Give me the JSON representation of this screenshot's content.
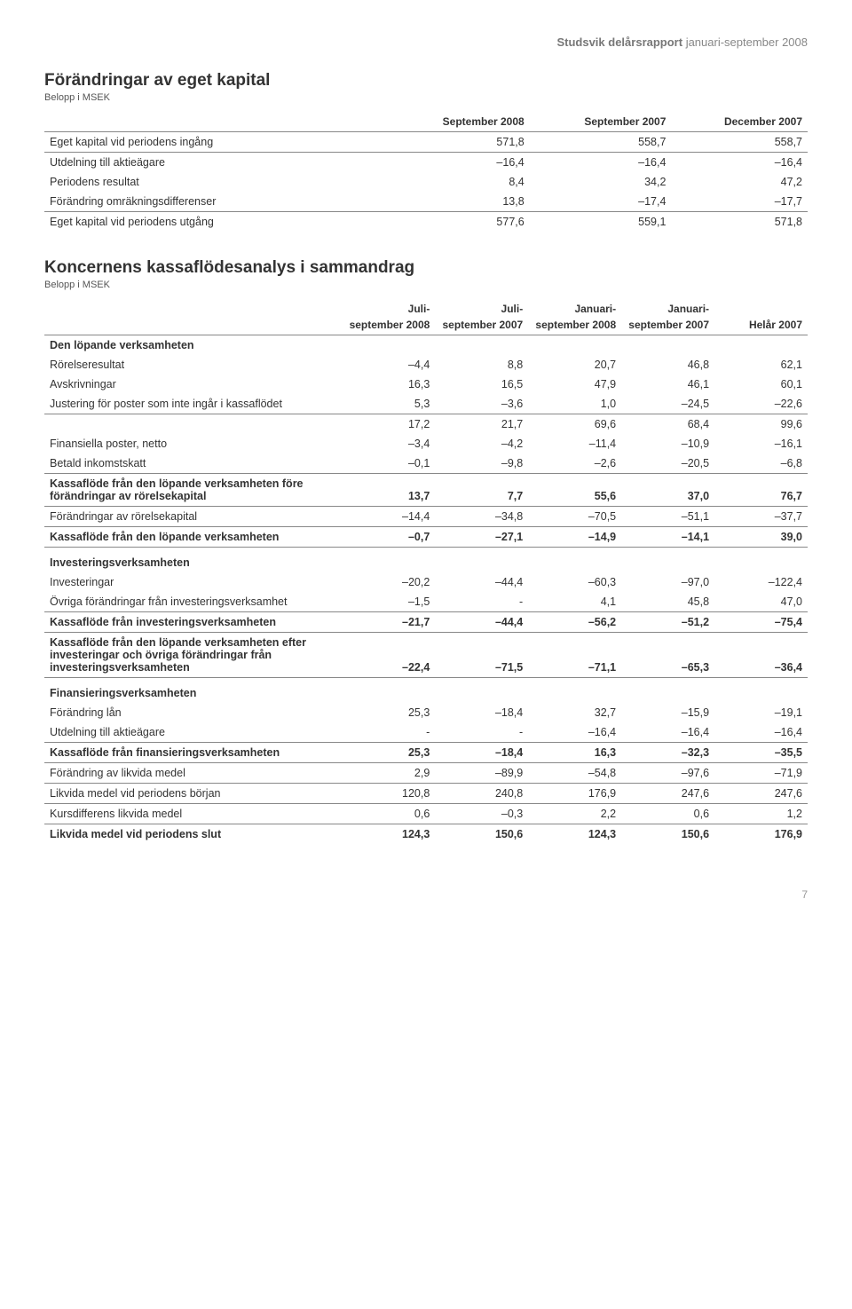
{
  "header": {
    "bold": "Studsvik delårsrapport",
    "light": " januari-september 2008"
  },
  "table1": {
    "title": "Förändringar av eget kapital",
    "sub": "Belopp i MSEK",
    "columns": [
      "",
      "September 2008",
      "September 2007",
      "December 2007"
    ],
    "rows": [
      {
        "label": "Eget kapital vid periodens ingång",
        "v": [
          "571,8",
          "558,7",
          "558,7"
        ],
        "border": true
      },
      {
        "label": "Utdelning till aktieägare",
        "v": [
          "–16,4",
          "–16,4",
          "–16,4"
        ]
      },
      {
        "label": "Periodens resultat",
        "v": [
          "8,4",
          "34,2",
          "47,2"
        ]
      },
      {
        "label": "Förändring omräkningsdifferenser",
        "v": [
          "13,8",
          "–17,4",
          "–17,7"
        ],
        "border": true
      },
      {
        "label": "Eget kapital vid periodens utgång",
        "v": [
          "577,6",
          "559,1",
          "571,8"
        ]
      }
    ]
  },
  "table2": {
    "title": "Koncernens kassaflödesanalys i sammandrag",
    "sub": "Belopp i MSEK",
    "columns_top": [
      "",
      "Juli-",
      "Juli-",
      "Januari-",
      "Januari-",
      ""
    ],
    "columns_bot": [
      "",
      "september 2008",
      "september 2007",
      "september 2008",
      "september 2007",
      "Helår 2007"
    ],
    "rows": [
      {
        "label": "Den löpande verksamheten",
        "v": [
          "",
          "",
          "",
          "",
          ""
        ],
        "section": true
      },
      {
        "label": "Rörelseresultat",
        "v": [
          "–4,4",
          "8,8",
          "20,7",
          "46,8",
          "62,1"
        ]
      },
      {
        "label": "Avskrivningar",
        "v": [
          "16,3",
          "16,5",
          "47,9",
          "46,1",
          "60,1"
        ]
      },
      {
        "label": "Justering för poster som inte ingår i kassaflödet",
        "v": [
          "5,3",
          "–3,6",
          "1,0",
          "–24,5",
          "–22,6"
        ],
        "border": true
      },
      {
        "label": "",
        "v": [
          "17,2",
          "21,7",
          "69,6",
          "68,4",
          "99,6"
        ]
      },
      {
        "label": "Finansiella poster, netto",
        "v": [
          "–3,4",
          "–4,2",
          "–11,4",
          "–10,9",
          "–16,1"
        ]
      },
      {
        "label": "Betald inkomstskatt",
        "v": [
          "–0,1",
          "–9,8",
          "–2,6",
          "–20,5",
          "–6,8"
        ],
        "border": true
      },
      {
        "label": "Kassaflöde från den löpande verksamheten före förändringar av rörelsekapital",
        "v": [
          "13,7",
          "7,7",
          "55,6",
          "37,0",
          "76,7"
        ],
        "bold": true,
        "border": true
      },
      {
        "label": "Förändringar av rörelsekapital",
        "v": [
          "–14,4",
          "–34,8",
          "–70,5",
          "–51,1",
          "–37,7"
        ],
        "border": true
      },
      {
        "label": "Kassaflöde från den löpande verksamheten",
        "v": [
          "–0,7",
          "–27,1",
          "–14,9",
          "–14,1",
          "39,0"
        ],
        "bold": true,
        "border": true
      },
      {
        "label": "Investeringsverksamheten",
        "v": [
          "",
          "",
          "",
          "",
          ""
        ],
        "section": true,
        "thin_top": true
      },
      {
        "label": "Investeringar",
        "v": [
          "–20,2",
          "–44,4",
          "–60,3",
          "–97,0",
          "–122,4"
        ]
      },
      {
        "label": "Övriga förändringar från investeringsverksamhet",
        "v": [
          "–1,5",
          "-",
          "4,1",
          "45,8",
          "47,0"
        ],
        "border": true
      },
      {
        "label": "Kassaflöde från investeringsverksamheten",
        "v": [
          "–21,7",
          "–44,4",
          "–56,2",
          "–51,2",
          "–75,4"
        ],
        "bold": true,
        "border": true
      },
      {
        "label": "Kassaflöde från den löpande verksamheten efter investeringar och övriga förändringar från investeringsverksamheten",
        "v": [
          "–22,4",
          "–71,5",
          "–71,1",
          "–65,3",
          "–36,4"
        ],
        "bold": true,
        "border": true
      },
      {
        "label": "Finansieringsverksamheten",
        "v": [
          "",
          "",
          "",
          "",
          ""
        ],
        "section": true,
        "thin_top": true
      },
      {
        "label": "Förändring lån",
        "v": [
          "25,3",
          "–18,4",
          "32,7",
          "–15,9",
          "–19,1"
        ]
      },
      {
        "label": "Utdelning till aktieägare",
        "v": [
          "-",
          "-",
          "–16,4",
          "–16,4",
          "–16,4"
        ],
        "border": true
      },
      {
        "label": "Kassaflöde från finansieringsverksamheten",
        "v": [
          "25,3",
          "–18,4",
          "16,3",
          "–32,3",
          "–35,5"
        ],
        "bold": true,
        "border": true
      },
      {
        "label": "Förändring av likvida medel",
        "v": [
          "2,9",
          "–89,9",
          "–54,8",
          "–97,6",
          "–71,9"
        ],
        "border": true
      },
      {
        "label": "Likvida medel vid periodens början",
        "v": [
          "120,8",
          "240,8",
          "176,9",
          "247,6",
          "247,6"
        ],
        "border": true
      },
      {
        "label": "Kursdifferens likvida medel",
        "v": [
          "0,6",
          "–0,3",
          "2,2",
          "0,6",
          "1,2"
        ],
        "border": true
      },
      {
        "label": "Likvida medel vid periodens slut",
        "v": [
          "124,3",
          "150,6",
          "124,3",
          "150,6",
          "176,9"
        ],
        "bold": true
      }
    ]
  },
  "page_number": "7"
}
